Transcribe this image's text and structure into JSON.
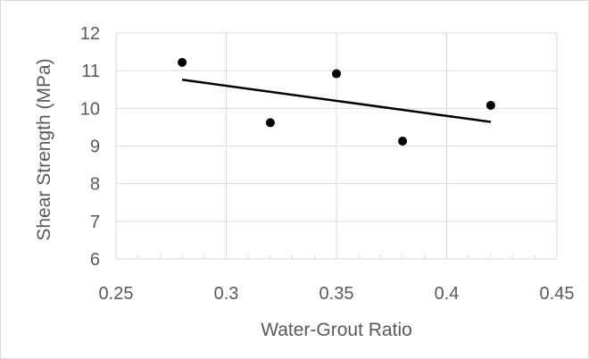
{
  "chart_data": {
    "type": "scatter",
    "title": "",
    "xlabel": "Water-Grout Ratio",
    "ylabel": "Shear Strength (MPa)",
    "xlim": [
      0.25,
      0.45
    ],
    "ylim": [
      6,
      12
    ],
    "x_ticks": [
      0.25,
      0.3,
      0.35,
      0.4,
      0.45
    ],
    "x_tick_labels": [
      "0.25",
      "0.3",
      "0.35",
      "0.4",
      "0.45"
    ],
    "y_ticks": [
      6,
      7,
      8,
      9,
      10,
      11,
      12
    ],
    "y_tick_labels": [
      "6",
      "7",
      "8",
      "9",
      "10",
      "11",
      "12"
    ],
    "points": [
      {
        "x": 0.28,
        "y": 11.22
      },
      {
        "x": 0.32,
        "y": 9.62
      },
      {
        "x": 0.35,
        "y": 10.92
      },
      {
        "x": 0.38,
        "y": 9.13
      },
      {
        "x": 0.42,
        "y": 10.08
      }
    ],
    "trendline": {
      "x": [
        0.28,
        0.42
      ],
      "y": [
        10.76,
        9.64
      ]
    },
    "grid": true,
    "legend": "none",
    "colors": {
      "marker": "#000000",
      "trendline": "#000000",
      "grid": "#d9d9d9",
      "text": "#595959"
    }
  }
}
